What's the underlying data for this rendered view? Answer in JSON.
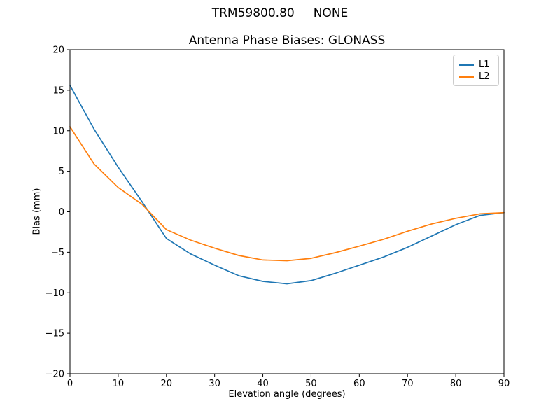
{
  "figure": {
    "suptitle": "TRM59800.80     NONE",
    "background": "#ffffff"
  },
  "chart_data": {
    "type": "line",
    "title": "Antenna Phase Biases: GLONASS",
    "xlabel": "Elevation angle (degrees)",
    "ylabel": "Bias (mm)",
    "xlim": [
      0,
      90
    ],
    "ylim": [
      -20,
      20
    ],
    "xticks": [
      0,
      10,
      20,
      30,
      40,
      50,
      60,
      70,
      80,
      90
    ],
    "yticks": [
      -20,
      -15,
      -10,
      -5,
      0,
      5,
      10,
      15,
      20
    ],
    "grid": false,
    "legend_position": "upper right",
    "frame_color": "#000000",
    "x": [
      0,
      5,
      10,
      15,
      20,
      25,
      30,
      35,
      40,
      45,
      50,
      55,
      60,
      65,
      70,
      75,
      80,
      85,
      90
    ],
    "series": [
      {
        "name": "L1",
        "color": "#1f77b4",
        "values": [
          15.6,
          10.2,
          5.5,
          1.2,
          -3.3,
          -5.2,
          -6.6,
          -7.9,
          -8.6,
          -8.9,
          -8.5,
          -7.6,
          -6.6,
          -5.6,
          -4.4,
          -3.0,
          -1.6,
          -0.45,
          -0.1
        ]
      },
      {
        "name": "L2",
        "color": "#ff7f0e",
        "values": [
          10.5,
          5.9,
          3.0,
          0.9,
          -2.2,
          -3.5,
          -4.5,
          -5.4,
          -5.95,
          -6.05,
          -5.75,
          -5.05,
          -4.25,
          -3.4,
          -2.4,
          -1.5,
          -0.8,
          -0.25,
          -0.1
        ]
      }
    ]
  }
}
